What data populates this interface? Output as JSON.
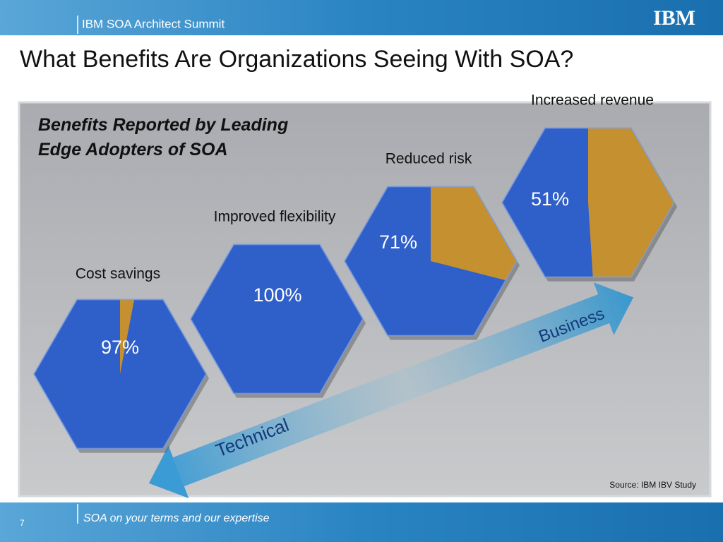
{
  "header": {
    "event": "IBM SOA Architect Summit",
    "logo": "IBM"
  },
  "title": "What Benefits Are Organizations Seeing With SOA?",
  "chart_data": {
    "type": "hex-pie",
    "title": "Benefits Reported by Leading Edge Adopters of SOA",
    "categories": [
      "Cost savings",
      "Improved flexibility",
      "Reduced risk",
      "Increased revenue"
    ],
    "values": [
      97,
      100,
      71,
      51
    ],
    "value_labels": [
      "97%",
      "100%",
      "71%",
      "51%"
    ],
    "color": "#2f5fc8",
    "remainder_color": "#c49030",
    "arrow_labels": [
      "Technical",
      "Business"
    ],
    "source": "Source: IBM IBV Study"
  },
  "footer": {
    "tagline": "SOA on your terms and our expertise",
    "page": "7"
  }
}
